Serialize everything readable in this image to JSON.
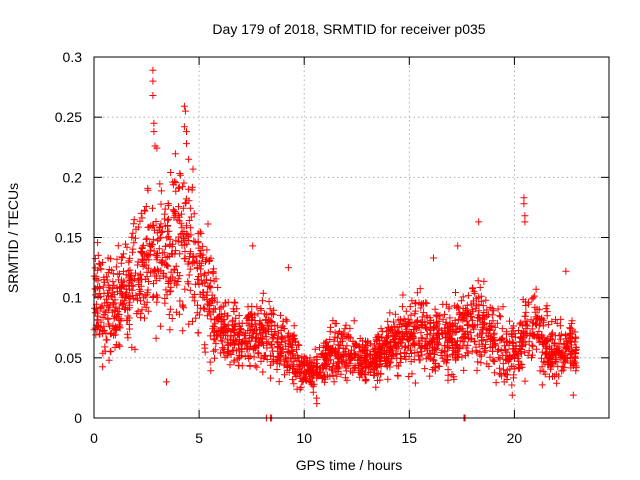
{
  "chart_data": {
    "type": "scatter",
    "title": "Day 179 of 2018, SRMTID for receiver p035",
    "xlabel": "GPS time / hours",
    "ylabel": "SRMTID / TECUs",
    "xlim": [
      0,
      24.5
    ],
    "ylim": [
      0,
      0.3
    ],
    "x_ticks": [
      0,
      5,
      10,
      15,
      20
    ],
    "x_tick_labels": [
      "0",
      "5",
      "10",
      "15",
      "20"
    ],
    "y_ticks": [
      0,
      0.05,
      0.1,
      0.15,
      0.2,
      0.25,
      0.3
    ],
    "y_tick_labels": [
      "0",
      "0.05",
      "0.1",
      "0.15",
      "0.2",
      "0.25",
      "0.3"
    ],
    "grid": true,
    "marker": "+",
    "color": "#ff0000",
    "series": [
      {
        "name": "SRMTID",
        "profile": {
          "x": [
            0,
            0.5,
            1,
            1.5,
            2,
            2.5,
            3,
            3.5,
            4,
            4.5,
            5,
            5.5,
            6,
            6.5,
            7,
            7.5,
            8,
            8.5,
            9,
            9.5,
            10,
            10.5,
            11,
            11.5,
            12,
            12.5,
            13,
            13.5,
            14,
            14.5,
            15,
            15.5,
            16,
            16.5,
            17,
            17.5,
            18,
            18.5,
            19,
            19.5,
            20,
            20.5,
            21,
            21.5,
            22,
            22.5,
            22.9
          ],
          "y": [
            0.1,
            0.09,
            0.09,
            0.1,
            0.12,
            0.13,
            0.14,
            0.14,
            0.15,
            0.14,
            0.12,
            0.1,
            0.075,
            0.065,
            0.065,
            0.07,
            0.07,
            0.065,
            0.06,
            0.05,
            0.04,
            0.04,
            0.05,
            0.055,
            0.055,
            0.05,
            0.045,
            0.05,
            0.06,
            0.065,
            0.07,
            0.07,
            0.065,
            0.065,
            0.065,
            0.07,
            0.08,
            0.075,
            0.065,
            0.06,
            0.055,
            0.065,
            0.075,
            0.06,
            0.055,
            0.055,
            0.055
          ]
        },
        "x_range": [
          0,
          22.95
        ],
        "n_points": 2400,
        "peaks": [
          {
            "x": 2.8,
            "y": 0.289
          },
          {
            "x": 2.8,
            "y": 0.28
          },
          {
            "x": 2.8,
            "y": 0.268
          },
          {
            "x": 2.85,
            "y": 0.245
          },
          {
            "x": 2.85,
            "y": 0.238
          },
          {
            "x": 2.9,
            "y": 0.226
          },
          {
            "x": 4.3,
            "y": 0.259
          },
          {
            "x": 4.35,
            "y": 0.255
          },
          {
            "x": 4.3,
            "y": 0.242
          },
          {
            "x": 4.4,
            "y": 0.238
          },
          {
            "x": 4.4,
            "y": 0.228
          },
          {
            "x": 4.5,
            "y": 0.215
          },
          {
            "x": 20.45,
            "y": 0.183
          },
          {
            "x": 20.45,
            "y": 0.178
          },
          {
            "x": 20.5,
            "y": 0.168
          },
          {
            "x": 20.5,
            "y": 0.163
          },
          {
            "x": 18.3,
            "y": 0.163
          },
          {
            "x": 16.15,
            "y": 0.133
          },
          {
            "x": 17.3,
            "y": 0.143
          },
          {
            "x": 7.55,
            "y": 0.143
          },
          {
            "x": 9.25,
            "y": 0.125
          },
          {
            "x": 22.45,
            "y": 0.122
          },
          {
            "x": 3.45,
            "y": 0.03
          },
          {
            "x": 10.6,
            "y": 0.012
          },
          {
            "x": 19.9,
            "y": 0.019
          },
          {
            "x": 22.8,
            "y": 0.019
          }
        ],
        "zero_marks": [
          8.2,
          8.4,
          8.45,
          17.6,
          17.65
        ]
      }
    ]
  }
}
